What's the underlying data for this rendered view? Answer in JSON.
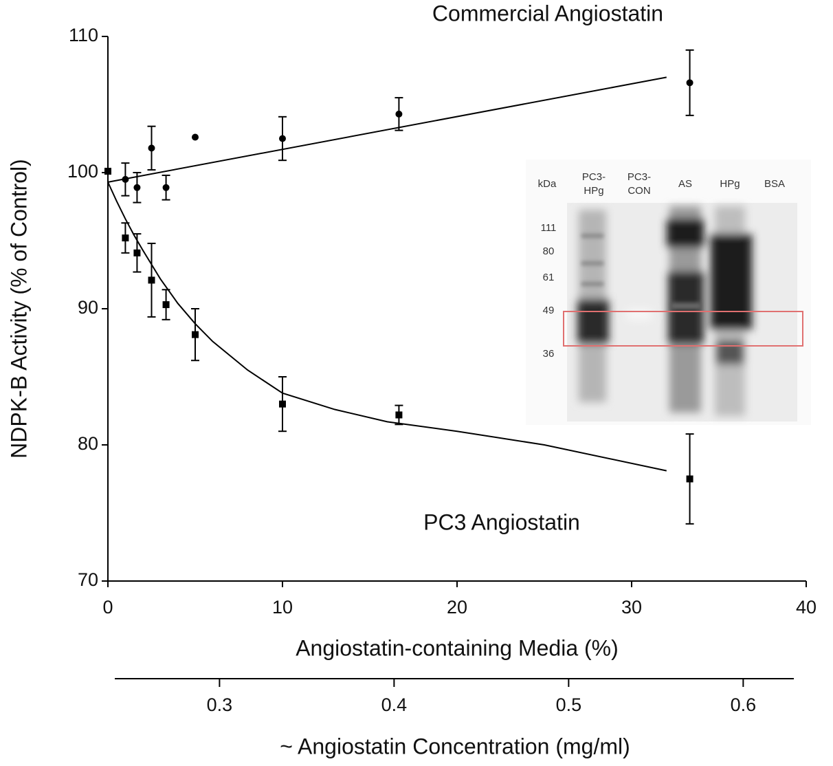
{
  "chart_data": {
    "type": "scatter",
    "x_label": "Angiostatin-containing Media (%)",
    "y_label": "NDPK-B Activity (% of Control)",
    "xlim": [
      0,
      40
    ],
    "xticks": [
      0,
      10,
      20,
      30,
      40
    ],
    "ylim": [
      70,
      110
    ],
    "yticks": [
      70,
      80,
      90,
      100,
      110
    ],
    "x2_label": "~ Angiostatin Concentration (mg/ml)",
    "x2lim": [
      0.24,
      0.629
    ],
    "x2ticks": [
      0.3,
      0.4,
      0.5,
      0.6
    ],
    "series": [
      {
        "name": "Commercial Angiostatin",
        "color": "#000000",
        "marker": "circle",
        "x": [
          1,
          1.67,
          2.5,
          3.33,
          5,
          10,
          16.67,
          33.33
        ],
        "values": [
          99.5,
          98.9,
          101.8,
          98.9,
          102.6,
          102.5,
          104.3,
          106.6
        ],
        "errors": [
          1.2,
          1.1,
          1.6,
          0.9,
          null,
          1.6,
          1.2,
          2.4
        ],
        "fit": {
          "x": [
            0,
            32
          ],
          "values": [
            99.3,
            107.0
          ]
        }
      },
      {
        "name": "PC3 Angiostatin",
        "color": "#000000",
        "marker": "square",
        "x": [
          0,
          1,
          1.67,
          2.5,
          3.33,
          5,
          10,
          16.67,
          33.33
        ],
        "values": [
          100.1,
          95.2,
          94.1,
          92.1,
          90.3,
          88.1,
          83.0,
          82.2,
          77.5
        ],
        "errors": [
          null,
          1.1,
          1.4,
          2.7,
          1.1,
          1.9,
          2.0,
          0.7,
          3.3
        ],
        "fit": {
          "x": [
            0,
            0.5,
            1,
            1.5,
            2,
            3,
            4,
            5,
            6,
            8,
            10,
            13,
            16,
            20,
            25,
            32
          ],
          "values": [
            99.3,
            97.9,
            96.6,
            95.4,
            94.3,
            92.2,
            90.4,
            88.9,
            87.6,
            85.5,
            83.8,
            82.6,
            81.7,
            81.0,
            80.0,
            78.1
          ]
        }
      }
    ]
  },
  "inset": {
    "header": "kDa",
    "lanes": [
      [
        "PC3-",
        "HPg"
      ],
      [
        "PC3-",
        "CON"
      ],
      [
        "AS"
      ],
      [
        "HPg"
      ],
      [
        "BSA"
      ]
    ],
    "markers": [
      "111",
      "80",
      "61",
      "49",
      "36"
    ]
  }
}
